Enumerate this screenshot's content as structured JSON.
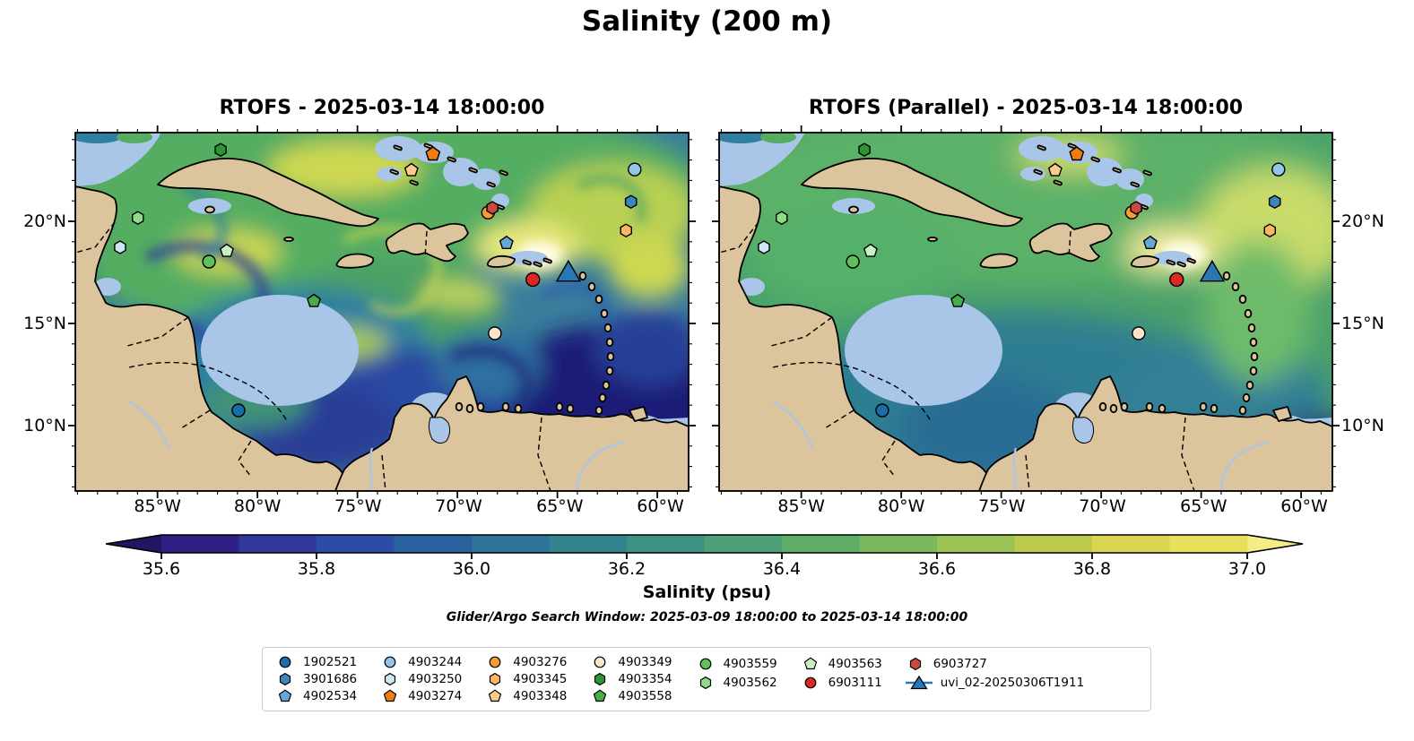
{
  "figure": {
    "title": "Salinity (200 m)",
    "subtitle": "Glider/Argo Search Window: 2025-03-09 18:00:00 to 2025-03-14 18:00:00"
  },
  "panels": [
    {
      "id": "left",
      "title": "RTOFS - 2025-03-14 18:00:00",
      "style": "turbulent",
      "page_x": 84
    },
    {
      "id": "right",
      "title": "RTOFS (Parallel) - 2025-03-14 18:00:00",
      "style": "smooth",
      "page_x": 802
    }
  ],
  "axes": {
    "x_ticks": [
      {
        "label": "85°W",
        "pct": 13.4
      },
      {
        "label": "80°W",
        "pct": 29.7
      },
      {
        "label": "75°W",
        "pct": 46.1
      },
      {
        "label": "70°W",
        "pct": 62.5
      },
      {
        "label": "65°W",
        "pct": 79.0
      },
      {
        "label": "60°W",
        "pct": 95.4
      }
    ],
    "y_ticks": [
      {
        "label": "20°N",
        "pct": 24.75
      },
      {
        "label": "15°N",
        "pct": 53.25
      },
      {
        "label": "10°N",
        "pct": 81.75
      }
    ]
  },
  "colorbar": {
    "label": "Salinity (psu)",
    "ticks": [
      "35.6",
      "35.8",
      "36.0",
      "36.2",
      "36.4",
      "36.6",
      "36.8",
      "37.0"
    ],
    "under_color": "#241563",
    "over_color": "#f5ec86",
    "segment_colors": [
      "#2e2183",
      "#32379c",
      "#2b4da5",
      "#2a62a0",
      "#2d7398",
      "#34828e",
      "#3d9184",
      "#4c9f77",
      "#60ac69",
      "#7cb75d",
      "#9bc255",
      "#bccb4e",
      "#d9d452",
      "#e8df5c"
    ]
  },
  "markers": [
    {
      "id": "4903354",
      "shape": "hexagon",
      "color": "#2c9632",
      "x": 23.7,
      "y": 4.8,
      "r": 7
    },
    {
      "id": "4903274",
      "shape": "pentagon",
      "color": "#f07e0e",
      "x": 58.3,
      "y": 6.0,
      "r": 8
    },
    {
      "id": "4903348",
      "shape": "pentagon",
      "color": "#fcca8c",
      "x": 54.8,
      "y": 10.5,
      "r": 7.5
    },
    {
      "id": "4903244",
      "shape": "circle",
      "color": "#93c5e8",
      "x": 91.2,
      "y": 10.3,
      "r": 7
    },
    {
      "id": "3901686",
      "shape": "hexagon",
      "color": "#3b87bd",
      "x": 90.6,
      "y": 19.3,
      "r": 7
    },
    {
      "id": "4903276",
      "shape": "circle",
      "color": "#f89b33",
      "x": 67.3,
      "y": 22.3,
      "r": 7
    },
    {
      "id": "6903727",
      "shape": "hexagon",
      "color": "#c84a42",
      "x": 68.0,
      "y": 21.0,
      "r": 7
    },
    {
      "id": "4903345",
      "shape": "hexagon",
      "color": "#fbb564",
      "x": 89.8,
      "y": 27.3,
      "r": 7
    },
    {
      "id": "4903562",
      "shape": "hexagon",
      "color": "#8fdc86",
      "x": 10.2,
      "y": 23.8,
      "r": 7
    },
    {
      "id": "4903250",
      "shape": "hexagon",
      "color": "#cfe6f5",
      "x": 7.3,
      "y": 32.0,
      "r": 7
    },
    {
      "id": "4903563",
      "shape": "pentagon",
      "color": "#c8f0c0",
      "x": 24.7,
      "y": 33.0,
      "r": 7.5
    },
    {
      "id": "4903559",
      "shape": "circle",
      "color": "#5fc05c",
      "x": 21.8,
      "y": 36.0,
      "r": 7
    },
    {
      "id": "4902534",
      "shape": "pentagon",
      "color": "#66a8d4",
      "x": 70.3,
      "y": 30.8,
      "r": 7.5
    },
    {
      "id": "4903558",
      "shape": "pentagon",
      "color": "#46ad49",
      "x": 38.9,
      "y": 47.0,
      "r": 7.5
    },
    {
      "id": "4903349",
      "shape": "circle",
      "color": "#fde4c8",
      "x": 68.4,
      "y": 56.0,
      "r": 7
    },
    {
      "id": "1902521",
      "shape": "circle",
      "color": "#1c6cab",
      "x": 26.6,
      "y": 77.5,
      "r": 7
    },
    {
      "id": "6903111",
      "shape": "circle",
      "color": "#dc2723",
      "x": 74.6,
      "y": 41.0,
      "r": 7.5
    },
    {
      "id": "uvi_02-20250306T1911",
      "shape": "triangle",
      "color": "#2878b5",
      "x": 80.4,
      "y": 39.3,
      "r": 13
    }
  ],
  "legend": {
    "columns": [
      [
        {
          "id": "1902521",
          "shape": "circle",
          "color": "#1c6cab"
        },
        {
          "id": "3901686",
          "shape": "hexagon",
          "color": "#3b87bd"
        },
        {
          "id": "4902534",
          "shape": "pentagon",
          "color": "#66a8d4"
        }
      ],
      [
        {
          "id": "4903244",
          "shape": "circle",
          "color": "#93c5e8"
        },
        {
          "id": "4903250",
          "shape": "hexagon",
          "color": "#cfe6f5"
        },
        {
          "id": "4903274",
          "shape": "pentagon",
          "color": "#f07e0e"
        }
      ],
      [
        {
          "id": "4903276",
          "shape": "circle",
          "color": "#f89b33"
        },
        {
          "id": "4903345",
          "shape": "hexagon",
          "color": "#fbb564"
        },
        {
          "id": "4903348",
          "shape": "pentagon",
          "color": "#fcca8c"
        }
      ],
      [
        {
          "id": "4903349",
          "shape": "circle",
          "color": "#fde4c8"
        },
        {
          "id": "4903354",
          "shape": "hexagon",
          "color": "#2c9632"
        },
        {
          "id": "4903558",
          "shape": "pentagon",
          "color": "#46ad49"
        }
      ],
      [
        {
          "id": "4903559",
          "shape": "circle",
          "color": "#5fc05c"
        },
        {
          "id": "4903562",
          "shape": "hexagon",
          "color": "#8fdc86"
        }
      ],
      [
        {
          "id": "4903563",
          "shape": "pentagon",
          "color": "#c8f0c0"
        },
        {
          "id": "6903111",
          "shape": "circle",
          "color": "#dc2723"
        }
      ],
      [
        {
          "id": "6903727",
          "shape": "hexagon",
          "color": "#c84a42"
        },
        {
          "id": "uvi_02-20250306T1911",
          "shape": "glider",
          "color": "#2878b5"
        }
      ]
    ]
  },
  "map_colors": {
    "land": "#dcc49c",
    "coast": "#000000",
    "shallow": "#a9c6e8",
    "pacific_deep": "#231a6e"
  },
  "chart_data": {
    "type": "heatmap",
    "title": "Salinity (200 m)",
    "subtitle": "Glider/Argo Search Window: 2025-03-09 18:00:00 to 2025-03-14 18:00:00",
    "panels": [
      {
        "title": "RTOFS - 2025-03-14 18:00:00",
        "field": "salinity at 200 m, high mesoscale variability"
      },
      {
        "title": "RTOFS (Parallel) - 2025-03-14 18:00:00",
        "field": "salinity at 200 m, smoother field"
      }
    ],
    "colorbar": {
      "label": "Salinity (psu)",
      "ticks": [
        35.6,
        35.8,
        36.0,
        36.2,
        36.4,
        36.6,
        36.8,
        37.0
      ],
      "range": [
        35.6,
        37.0
      ],
      "extend": "both",
      "colormap": "haline-like (dark indigo to pale yellow)"
    },
    "x_axis": {
      "tick_labels": [
        "85°W",
        "80°W",
        "75°W",
        "70°W",
        "65°W",
        "60°W"
      ],
      "range_deg_west": [
        89.1,
        58.6
      ]
    },
    "y_axis": {
      "tick_labels": [
        "20°N",
        "15°N",
        "10°N"
      ],
      "range_deg_north": [
        6.8,
        24.3
      ]
    },
    "region": "Caribbean Sea (Cuba, Hispaniola, Jamaica, Puerto Rico, Central and South America)",
    "platforms": [
      {
        "id": "1902521",
        "shape": "circle",
        "lon_w": 81.0,
        "lat_n": 10.7
      },
      {
        "id": "3901686",
        "shape": "hexagon",
        "lon_w": 61.5,
        "lat_n": 21.0
      },
      {
        "id": "4902534",
        "shape": "pentagon",
        "lon_w": 67.6,
        "lat_n": 18.9
      },
      {
        "id": "4903244",
        "shape": "circle",
        "lon_w": 61.3,
        "lat_n": 22.5
      },
      {
        "id": "4903250",
        "shape": "hexagon",
        "lon_w": 86.8,
        "lat_n": 18.7
      },
      {
        "id": "4903274",
        "shape": "pentagon",
        "lon_w": 71.3,
        "lat_n": 23.3
      },
      {
        "id": "4903276",
        "shape": "circle",
        "lon_w": 68.6,
        "lat_n": 20.4
      },
      {
        "id": "4903345",
        "shape": "hexagon",
        "lon_w": 61.7,
        "lat_n": 19.6
      },
      {
        "id": "4903348",
        "shape": "pentagon",
        "lon_w": 72.4,
        "lat_n": 22.5
      },
      {
        "id": "4903349",
        "shape": "circle",
        "lon_w": 68.2,
        "lat_n": 14.5
      },
      {
        "id": "4903354",
        "shape": "hexagon",
        "lon_w": 81.9,
        "lat_n": 23.5
      },
      {
        "id": "4903558",
        "shape": "pentagon",
        "lon_w": 77.2,
        "lat_n": 16.1
      },
      {
        "id": "4903559",
        "shape": "circle",
        "lon_w": 82.4,
        "lat_n": 18.0
      },
      {
        "id": "4903562",
        "shape": "hexagon",
        "lon_w": 86.0,
        "lat_n": 20.2
      },
      {
        "id": "4903563",
        "shape": "pentagon",
        "lon_w": 81.5,
        "lat_n": 18.5
      },
      {
        "id": "6903111",
        "shape": "circle",
        "lon_w": 66.3,
        "lat_n": 17.2
      },
      {
        "id": "6903727",
        "shape": "hexagon",
        "lon_w": 68.4,
        "lat_n": 20.7
      },
      {
        "id": "uvi_02-20250306T1911",
        "shape": "triangle",
        "lon_w": 64.6,
        "lat_n": 17.5
      }
    ]
  }
}
